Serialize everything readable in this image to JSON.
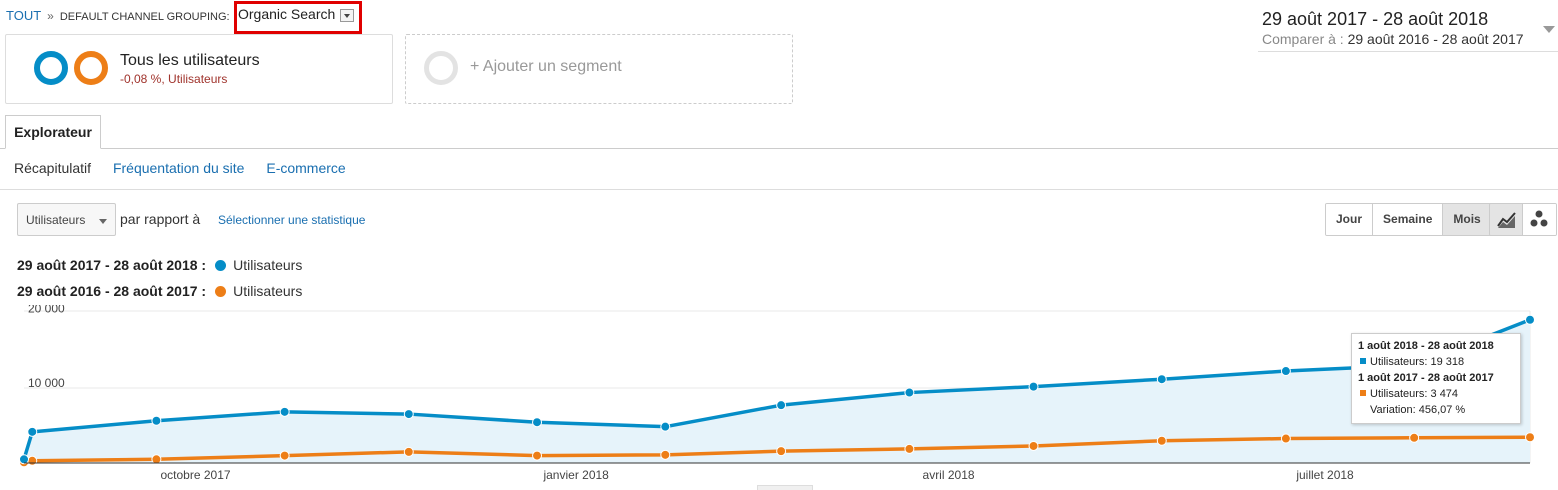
{
  "breadcrumb": {
    "root": "TOUT",
    "separator": "»",
    "dimension": "DEFAULT CHANNEL GROUPING:",
    "value": "Organic Search"
  },
  "date_range": {
    "current": "29 août 2017 - 28 août 2018",
    "compare_label": "Comparer à :",
    "compare": "29 août 2016 - 28 août 2017"
  },
  "segments": {
    "primary_title": "Tous les utilisateurs",
    "primary_sub": "-0,08 %, Utilisateurs",
    "add_label": "+ Ajouter un segment"
  },
  "tabs": [
    {
      "label": "Explorateur"
    }
  ],
  "subnav": [
    "Récapitulatif",
    "Fréquentation du site",
    "E-commerce"
  ],
  "toolbar": {
    "metric": "Utilisateurs",
    "versus": "par rapport à",
    "pick_metric": "Sélectionner une statistique",
    "periods": [
      "Jour",
      "Semaine",
      "Mois"
    ],
    "active_period": "Mois"
  },
  "legend": [
    {
      "range": "29 août 2017 - 28 août 2018 :",
      "label": "Utilisateurs",
      "color": "#058dc7"
    },
    {
      "range": "29 août 2016 - 28 août 2017 :",
      "label": "Utilisateurs",
      "color": "#ed7e17"
    }
  ],
  "tooltip": {
    "current_range": "1 août 2018 - 28 août 2018",
    "current_value": "Utilisateurs: 19 318",
    "previous_range": "1 août 2017 - 28 août 2017",
    "previous_value": "Utilisateurs: 3 474",
    "variation": "Variation: 456,07 %"
  },
  "chart_data": {
    "type": "line",
    "x_tick_labels": [
      "octobre 2017",
      "janvier 2018",
      "avril 2018",
      "juillet 2018"
    ],
    "y_tick_labels": [
      "10 000",
      "20 000"
    ],
    "ylim": [
      0,
      20500
    ],
    "x": [
      "2017-08-29",
      "2017-08-31",
      "2017-09-30",
      "2017-10-31",
      "2017-11-30",
      "2017-12-31",
      "2018-01-31",
      "2018-02-28",
      "2018-03-31",
      "2018-04-30",
      "2018-05-31",
      "2018-06-30",
      "2018-07-31",
      "2018-08-28"
    ],
    "series": [
      {
        "name": "Utilisateurs",
        "color": "#058dc7",
        "values": [
          500,
          4200,
          5700,
          6900,
          6600,
          5500,
          4900,
          7800,
          9500,
          10300,
          11300,
          12400,
          13200,
          19318
        ]
      },
      {
        "name": "Utilisateurs",
        "color": "#ed7e17",
        "values": [
          100,
          300,
          500,
          1000,
          1500,
          1000,
          1100,
          1600,
          1900,
          2300,
          3000,
          3300,
          3400,
          3474
        ]
      }
    ]
  }
}
